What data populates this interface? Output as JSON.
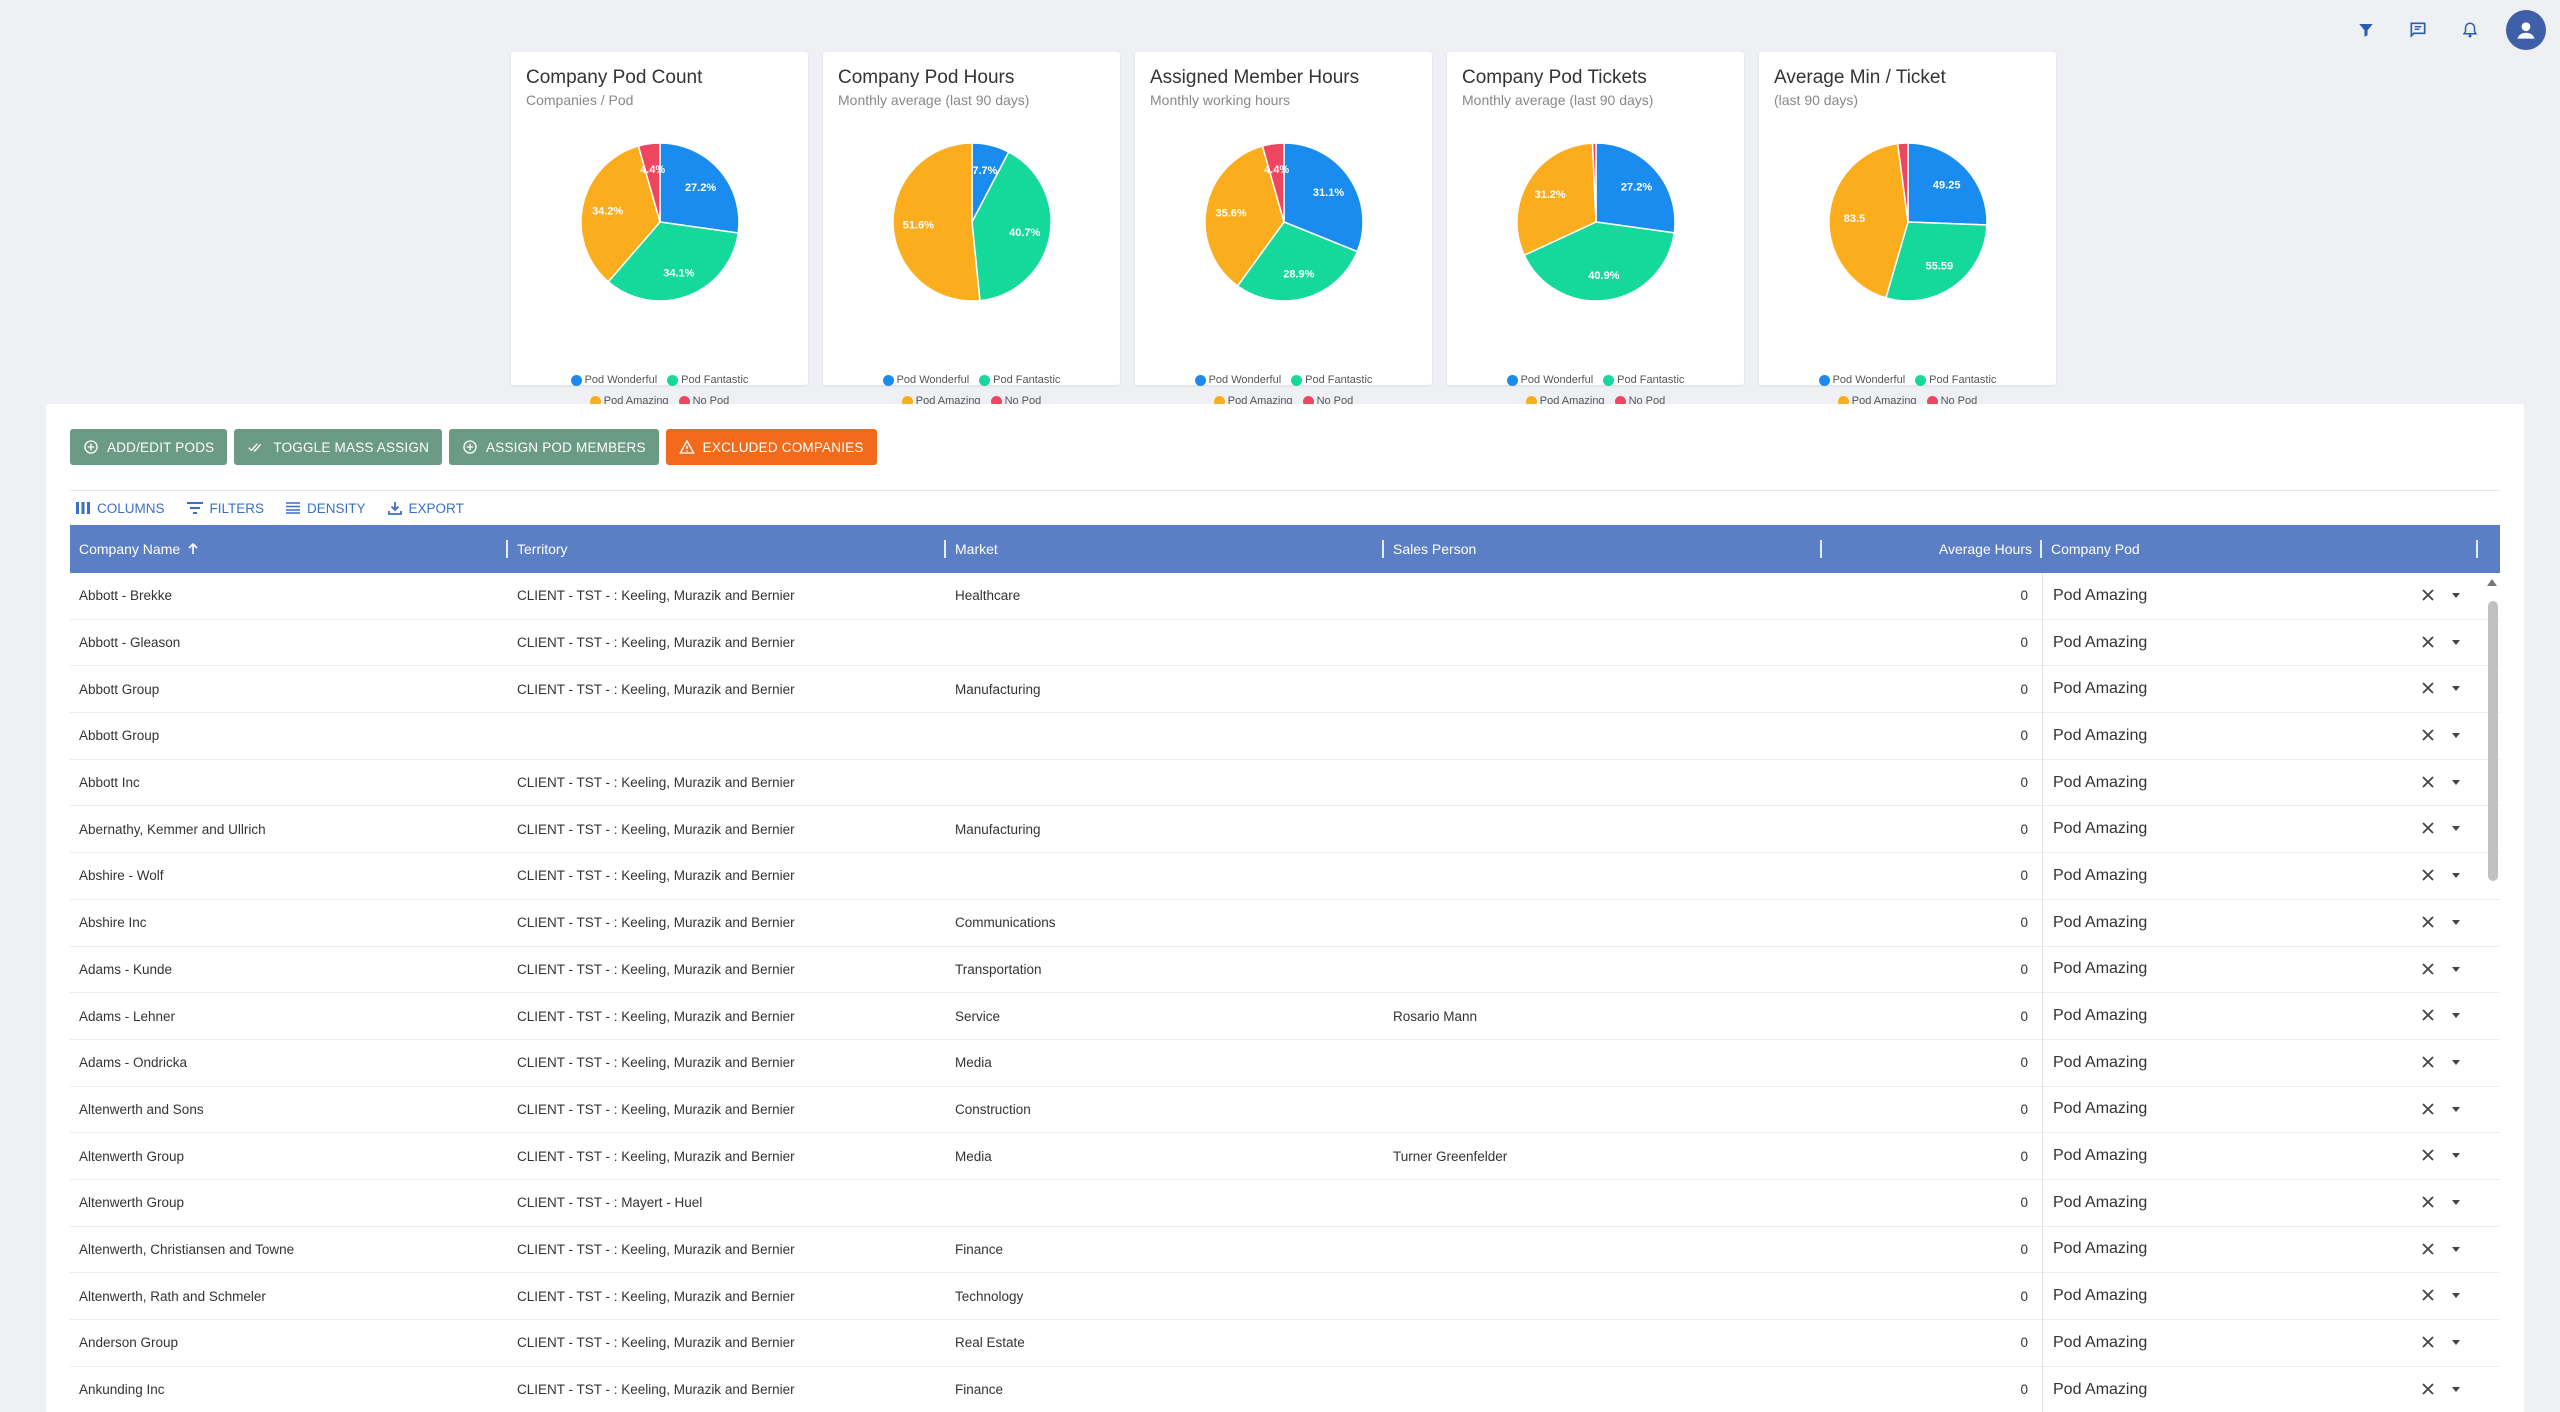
{
  "colors": {
    "pod_wonderful": "#1a8cf0",
    "pod_fantastic": "#15d99a",
    "pod_amazing": "#fcad1e",
    "no_pod": "#ee4560",
    "header_bg": "#5a7fc4",
    "button_green": "#6b9a85",
    "button_orange": "#f26b1d"
  },
  "topbar": {
    "icons": [
      "filter-icon",
      "chat-icon",
      "bell-icon",
      "account-icon"
    ]
  },
  "legend": {
    "wonderful": "Pod Wonderful",
    "fantastic": "Pod Fantastic",
    "amazing": "Pod Amazing",
    "nopod": "No Pod"
  },
  "chart_data": [
    {
      "type": "pie",
      "title": "Company Pod Count",
      "subtitle": "Companies / Pod",
      "slices": [
        {
          "name": "Pod Wonderful",
          "value": 27.2,
          "label": "27.2%"
        },
        {
          "name": "Pod Fantastic",
          "value": 34.1,
          "label": "34.1%"
        },
        {
          "name": "Pod Amazing",
          "value": 34.2,
          "label": "34.2%"
        },
        {
          "name": "No Pod",
          "value": 4.4,
          "label": "4.4%"
        }
      ]
    },
    {
      "type": "pie",
      "title": "Company Pod Hours",
      "subtitle": "Monthly average (last 90 days)",
      "slices": [
        {
          "name": "Pod Wonderful",
          "value": 7.7,
          "label": "7.7%"
        },
        {
          "name": "Pod Fantastic",
          "value": 40.7,
          "label": "40.7%"
        },
        {
          "name": "Pod Amazing",
          "value": 51.6,
          "label": "51.6%"
        },
        {
          "name": "No Pod",
          "value": 0,
          "label": ""
        }
      ]
    },
    {
      "type": "pie",
      "title": "Assigned Member Hours",
      "subtitle": "Monthly working hours",
      "slices": [
        {
          "name": "Pod Wonderful",
          "value": 31.1,
          "label": "31.1%"
        },
        {
          "name": "Pod Fantastic",
          "value": 28.9,
          "label": "28.9%"
        },
        {
          "name": "Pod Amazing",
          "value": 35.6,
          "label": "35.6%"
        },
        {
          "name": "No Pod",
          "value": 4.4,
          "label": "4.4%"
        }
      ]
    },
    {
      "type": "pie",
      "title": "Company Pod Tickets",
      "subtitle": "Monthly average (last 90 days)",
      "slices": [
        {
          "name": "Pod Wonderful",
          "value": 27.2,
          "label": "27.2%"
        },
        {
          "name": "Pod Fantastic",
          "value": 40.9,
          "label": "40.9%"
        },
        {
          "name": "Pod Amazing",
          "value": 31.2,
          "label": "31.2%"
        },
        {
          "name": "No Pod",
          "value": 0.7,
          "label": ""
        }
      ]
    },
    {
      "type": "pie",
      "title": "Average Min / Ticket",
      "subtitle": "(last 90 days)",
      "slices": [
        {
          "name": "Pod Wonderful",
          "value": 49.25,
          "label": "49.25"
        },
        {
          "name": "Pod Fantastic",
          "value": 55.59,
          "label": "55.59"
        },
        {
          "name": "Pod Amazing",
          "value": 83.5,
          "label": "83.5"
        },
        {
          "name": "No Pod",
          "value": 4.0,
          "label": ""
        }
      ]
    }
  ],
  "actions": {
    "add_edit_pods": "ADD/EDIT PODS",
    "toggle_mass_assign": "TOGGLE MASS ASSIGN",
    "assign_pod_members": "ASSIGN POD MEMBERS",
    "excluded_companies": "EXCLUDED COMPANIES"
  },
  "toolbar": {
    "columns": "COLUMNS",
    "filters": "FILTERS",
    "density": "DENSITY",
    "export": "EXPORT"
  },
  "table": {
    "headers": {
      "company": "Company Name",
      "territory": "Territory",
      "market": "Market",
      "sales": "Sales Person",
      "hours": "Average Hours",
      "pod": "Company Pod"
    },
    "rows": [
      {
        "company": "Abbott - Brekke",
        "territory": "CLIENT - TST - : Keeling, Murazik and Bernier",
        "market": "Healthcare",
        "sales": "",
        "hours": "0",
        "pod": "Pod Amazing"
      },
      {
        "company": "Abbott - Gleason",
        "territory": "CLIENT - TST - : Keeling, Murazik and Bernier",
        "market": "",
        "sales": "",
        "hours": "0",
        "pod": "Pod Amazing"
      },
      {
        "company": "Abbott Group",
        "territory": "CLIENT - TST - : Keeling, Murazik and Bernier",
        "market": "Manufacturing",
        "sales": "",
        "hours": "0",
        "pod": "Pod Amazing"
      },
      {
        "company": "Abbott Group",
        "territory": "",
        "market": "",
        "sales": "",
        "hours": "0",
        "pod": "Pod Amazing"
      },
      {
        "company": "Abbott Inc",
        "territory": "CLIENT - TST - : Keeling, Murazik and Bernier",
        "market": "",
        "sales": "",
        "hours": "0",
        "pod": "Pod Amazing"
      },
      {
        "company": "Abernathy, Kemmer and Ullrich",
        "territory": "CLIENT - TST - : Keeling, Murazik and Bernier",
        "market": "Manufacturing",
        "sales": "",
        "hours": "0",
        "pod": "Pod Amazing"
      },
      {
        "company": "Abshire - Wolf",
        "territory": "CLIENT - TST - : Keeling, Murazik and Bernier",
        "market": "",
        "sales": "",
        "hours": "0",
        "pod": "Pod Amazing"
      },
      {
        "company": "Abshire Inc",
        "territory": "CLIENT - TST - : Keeling, Murazik and Bernier",
        "market": "Communications",
        "sales": "",
        "hours": "0",
        "pod": "Pod Amazing"
      },
      {
        "company": "Adams - Kunde",
        "territory": "CLIENT - TST - : Keeling, Murazik and Bernier",
        "market": "Transportation",
        "sales": "",
        "hours": "0",
        "pod": "Pod Amazing"
      },
      {
        "company": "Adams - Lehner",
        "territory": "CLIENT - TST - : Keeling, Murazik and Bernier",
        "market": "Service",
        "sales": "Rosario Mann",
        "hours": "0",
        "pod": "Pod Amazing"
      },
      {
        "company": "Adams - Ondricka",
        "territory": "CLIENT - TST - : Keeling, Murazik and Bernier",
        "market": "Media",
        "sales": "",
        "hours": "0",
        "pod": "Pod Amazing"
      },
      {
        "company": "Altenwerth and Sons",
        "territory": "CLIENT - TST - : Keeling, Murazik and Bernier",
        "market": "Construction",
        "sales": "",
        "hours": "0",
        "pod": "Pod Amazing"
      },
      {
        "company": "Altenwerth Group",
        "territory": "CLIENT - TST - : Keeling, Murazik and Bernier",
        "market": "Media",
        "sales": "Turner Greenfelder",
        "hours": "0",
        "pod": "Pod Amazing"
      },
      {
        "company": "Altenwerth Group",
        "territory": "CLIENT - TST - : Mayert - Huel",
        "market": "",
        "sales": "",
        "hours": "0",
        "pod": "Pod Amazing"
      },
      {
        "company": "Altenwerth, Christiansen and Towne",
        "territory": "CLIENT - TST - : Keeling, Murazik and Bernier",
        "market": "Finance",
        "sales": "",
        "hours": "0",
        "pod": "Pod Amazing"
      },
      {
        "company": "Altenwerth, Rath and Schmeler",
        "territory": "CLIENT - TST - : Keeling, Murazik and Bernier",
        "market": "Technology",
        "sales": "",
        "hours": "0",
        "pod": "Pod Amazing"
      },
      {
        "company": "Anderson Group",
        "territory": "CLIENT - TST - : Keeling, Murazik and Bernier",
        "market": "Real Estate",
        "sales": "",
        "hours": "0",
        "pod": "Pod Amazing"
      },
      {
        "company": "Ankunding Inc",
        "territory": "CLIENT - TST - : Keeling, Murazik and Bernier",
        "market": "Finance",
        "sales": "",
        "hours": "0",
        "pod": "Pod Amazing"
      }
    ]
  }
}
